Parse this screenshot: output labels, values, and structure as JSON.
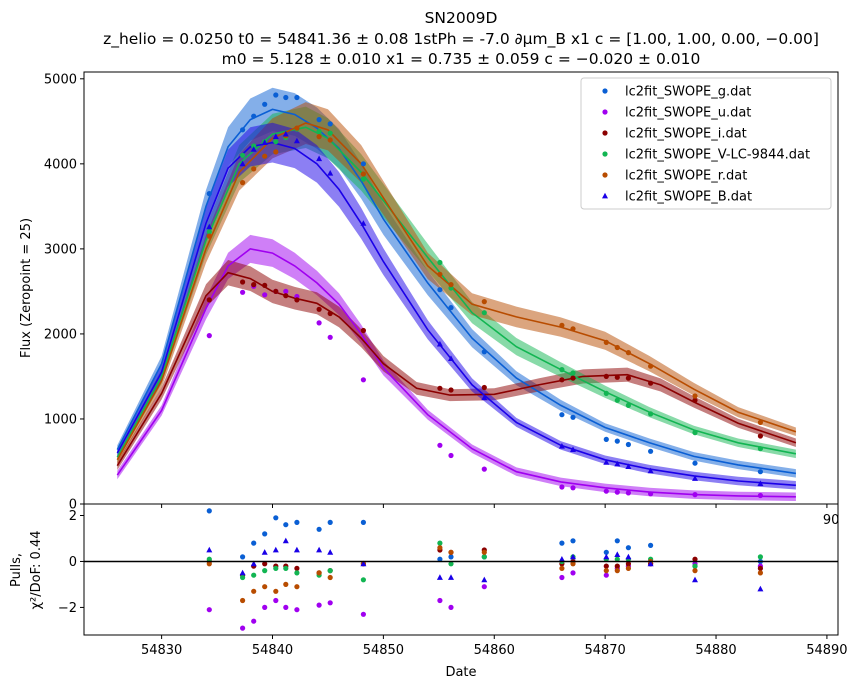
{
  "chart_data": [
    {
      "type": "scatter",
      "title": "SN2009D",
      "subtitle_line1": "z_helio = 0.0250 t0 = 54841.36 ± 0.08 1stPh = -7.0 ∂μm_B x1 c = [1.00, 1.00, 0.00, −0.00]",
      "subtitle_line2": "m0 = 5.128 ± 0.010 x1 = 0.735 ± 0.059 c = −0.020 ± 0.010",
      "ylabel": "Flux (Zeropoint = 25)",
      "xlim": [
        54823,
        54891
      ],
      "ylim": [
        0,
        5080
      ],
      "yticks": [
        0,
        1000,
        2000,
        3000,
        4000,
        5000
      ],
      "xtick_visible": [
        "54890"
      ],
      "legend_placement": "top-right",
      "series": [
        {
          "name": "lc2fit_SWOPE_g.dat",
          "color": "#0a5fd4",
          "marker": "circle",
          "x": [
            54834.3,
            54837.3,
            54838.3,
            54839.3,
            54840.3,
            54841.2,
            54842.2,
            54844.2,
            54845.2,
            54848.2,
            54855.1,
            54856.1,
            54859.1,
            54866.1,
            54867.1,
            54870.1,
            54871.1,
            54872.1,
            54874.1,
            54878.1,
            54884.0
          ],
          "y": [
            3650,
            4400,
            4560,
            4700,
            4810,
            4780,
            4780,
            4520,
            4470,
            4000,
            2520,
            2310,
            1790,
            1050,
            1020,
            760,
            740,
            700,
            620,
            480,
            380
          ],
          "fit": {
            "x": [
              54826,
              54830,
              54834,
              54836,
              54838,
              54840,
              54842,
              54844,
              54846,
              54848,
              54850,
              54854,
              54858,
              54862,
              54866,
              54870,
              54874,
              54878,
              54882,
              54887.2
            ],
            "y": [
              640,
              1650,
              3500,
              4200,
              4520,
              4640,
              4580,
              4420,
              4180,
              3800,
              3350,
              2600,
              1950,
              1480,
              1160,
              900,
              720,
              560,
              460,
              360
            ]
          }
        },
        {
          "name": "lc2fit_SWOPE_u.dat",
          "color": "#a000f0",
          "marker": "circle",
          "x": [
            54834.3,
            54837.3,
            54838.3,
            54839.3,
            54840.3,
            54841.2,
            54842.2,
            54844.2,
            54845.2,
            54848.2,
            54855.1,
            54856.1,
            54859.1,
            54866.1,
            54867.1,
            54870.1,
            54871.1,
            54872.1,
            54874.1,
            54878.1,
            54884.0
          ],
          "y": [
            1980,
            2490,
            2560,
            2460,
            2500,
            2500,
            2440,
            2130,
            1960,
            1460,
            690,
            570,
            410,
            200,
            190,
            150,
            140,
            130,
            120,
            110,
            100
          ],
          "fit": {
            "x": [
              54826,
              54830,
              54834,
              54836,
              54838,
              54840,
              54842,
              54844,
              54846,
              54848,
              54850,
              54854,
              54858,
              54862,
              54866,
              54870,
              54874,
              54878,
              54882,
              54887.2
            ],
            "y": [
              340,
              1100,
              2300,
              2800,
              3000,
              2950,
              2800,
              2600,
              2350,
              2000,
              1600,
              1050,
              650,
              380,
              260,
              190,
              140,
              110,
              95,
              85
            ]
          }
        },
        {
          "name": "lc2fit_SWOPE_i.dat",
          "color": "#8b0000",
          "marker": "circle",
          "x": [
            54834.3,
            54837.3,
            54838.3,
            54839.3,
            54840.3,
            54841.2,
            54842.2,
            54844.2,
            54845.2,
            54848.2,
            54855.1,
            54856.1,
            54859.1,
            54866.1,
            54867.1,
            54870.1,
            54871.1,
            54872.1,
            54874.1,
            54878.1,
            54884.0
          ],
          "y": [
            2400,
            2610,
            2580,
            2570,
            2500,
            2450,
            2400,
            2290,
            2240,
            2040,
            1360,
            1340,
            1370,
            1460,
            1480,
            1500,
            1490,
            1480,
            1420,
            1220,
            800
          ],
          "fit": {
            "x": [
              54826,
              54830,
              54834,
              54836,
              54838,
              54840,
              54842,
              54844,
              54846,
              54848,
              54850,
              54853,
              54856,
              54860,
              54864,
              54868,
              54872,
              54875,
              54878,
              54882,
              54887.2
            ],
            "y": [
              450,
              1300,
              2450,
              2720,
              2650,
              2500,
              2420,
              2360,
              2200,
              1950,
              1650,
              1360,
              1280,
              1290,
              1400,
              1500,
              1520,
              1400,
              1200,
              950,
              720
            ]
          }
        },
        {
          "name": "lc2fit_SWOPE_V-LC-9844.dat",
          "color": "#12b552",
          "marker": "circle",
          "x": [
            54834.3,
            54837.3,
            54838.3,
            54839.3,
            54840.3,
            54841.2,
            54842.2,
            54844.2,
            54845.2,
            54848.2,
            54855.1,
            54856.1,
            54859.1,
            54866.1,
            54867.1,
            54870.1,
            54871.1,
            54872.1,
            54874.1,
            54878.1,
            54884.0
          ],
          "y": [
            3200,
            4100,
            4210,
            4260,
            4260,
            4310,
            4410,
            4380,
            4360,
            3820,
            2840,
            2540,
            2250,
            1580,
            1540,
            1300,
            1220,
            1160,
            1060,
            840,
            650
          ],
          "fit": {
            "x": [
              54826,
              54830,
              54834,
              54837,
              54840,
              54843,
              54845,
              54848,
              54851,
              54854,
              54858,
              54862,
              54866,
              54870,
              54874,
              54878,
              54882,
              54887.2
            ],
            "y": [
              550,
              1500,
              3100,
              4000,
              4350,
              4430,
              4300,
              3900,
              3400,
              2900,
              2250,
              1850,
              1580,
              1320,
              1080,
              870,
              720,
              590
            ]
          }
        },
        {
          "name": "lc2fit_SWOPE_r.dat",
          "color": "#b84c00",
          "marker": "circle",
          "x": [
            54834.3,
            54837.3,
            54838.3,
            54839.3,
            54840.3,
            54841.2,
            54842.2,
            54844.2,
            54845.2,
            54848.2,
            54855.1,
            54856.1,
            54859.1,
            54866.1,
            54867.1,
            54870.1,
            54871.1,
            54872.1,
            54874.1,
            54878.1,
            54884.0
          ],
          "y": [
            3150,
            3780,
            3940,
            4090,
            4140,
            4330,
            4420,
            4320,
            4280,
            3880,
            2700,
            2580,
            2380,
            2100,
            2060,
            1900,
            1840,
            1780,
            1620,
            1270,
            960
          ],
          "fit": {
            "x": [
              54826,
              54830,
              54834,
              54837,
              54840,
              54843,
              54845,
              54848,
              54851,
              54854,
              54858,
              54862,
              54866,
              54870,
              54874,
              54878,
              54882,
              54887.2
            ],
            "y": [
              520,
              1450,
              3000,
              3900,
              4300,
              4480,
              4400,
              4000,
              3400,
              2800,
              2350,
              2200,
              2080,
              1920,
              1650,
              1350,
              1080,
              850
            ]
          }
        },
        {
          "name": "lc2fit_SWOPE_B.dat",
          "color": "#1a00e8",
          "marker": "triangle",
          "x": [
            54834.3,
            54837.3,
            54838.3,
            54839.3,
            54840.3,
            54841.2,
            54842.2,
            54844.2,
            54845.2,
            54848.2,
            54855.1,
            54856.1,
            54859.1,
            54866.1,
            54867.1,
            54870.1,
            54871.1,
            54872.1,
            54874.1,
            54878.1,
            54884.0
          ],
          "y": [
            3260,
            4000,
            4170,
            4250,
            4320,
            4350,
            4270,
            4060,
            3890,
            3300,
            1880,
            1710,
            1250,
            680,
            640,
            490,
            470,
            440,
            390,
            300,
            240
          ],
          "fit": {
            "x": [
              54826,
              54830,
              54834,
              54836,
              54838,
              54840,
              54842,
              54844,
              54846,
              54848,
              54850,
              54854,
              54858,
              54862,
              54866,
              54870,
              54874,
              54878,
              54882,
              54887.2
            ],
            "y": [
              600,
              1550,
              3300,
              3950,
              4200,
              4250,
              4180,
              4000,
              3700,
              3300,
              2850,
              2050,
              1400,
              960,
              690,
              520,
              410,
              330,
              270,
              220
            ]
          }
        }
      ]
    },
    {
      "type": "scatter",
      "xlabel": "Date",
      "ylabel_line1": "Pulls,",
      "ylabel_line2": "χ²/DoF: 0.44",
      "xlim": [
        54823,
        54891
      ],
      "ylim": [
        -3.2,
        2.5
      ],
      "xticks": [
        54830,
        54840,
        54850,
        54860,
        54870,
        54880,
        54890
      ],
      "yticks": [
        -2,
        0,
        2
      ],
      "zero_line": 0,
      "series": [
        {
          "name": "lc2fit_SWOPE_g.dat",
          "color": "#0a5fd4",
          "marker": "circle",
          "x": [
            54834.3,
            54837.3,
            54838.3,
            54839.3,
            54840.3,
            54841.2,
            54842.2,
            54844.2,
            54845.2,
            54848.2,
            54855.1,
            54856.1,
            54859.1,
            54866.1,
            54867.1,
            54870.1,
            54871.1,
            54872.1,
            54874.1,
            54878.1,
            54884.0
          ],
          "y": [
            2.2,
            0.2,
            0.8,
            1.2,
            1.9,
            1.6,
            1.7,
            1.4,
            1.7,
            1.7,
            0.1,
            0.2,
            0.2,
            0.8,
            0.9,
            0.4,
            0.9,
            0.6,
            0.7,
            -0.2,
            0.0
          ]
        },
        {
          "name": "lc2fit_SWOPE_u.dat",
          "color": "#a000f0",
          "marker": "circle",
          "x": [
            54834.3,
            54837.3,
            54838.3,
            54839.3,
            54840.3,
            54841.2,
            54842.2,
            54844.2,
            54845.2,
            54848.2,
            54855.1,
            54856.1,
            54859.1,
            54866.1,
            54867.1,
            54870.1,
            54871.1,
            54872.1,
            54874.1,
            54878.1,
            54884.0
          ],
          "y": [
            -2.1,
            -2.9,
            -2.6,
            -2.0,
            -1.7,
            -2.0,
            -2.1,
            -1.9,
            -1.8,
            -2.3,
            -1.7,
            -2.0,
            -1.1,
            -0.7,
            -0.5,
            -0.6,
            -0.3,
            -0.2,
            -0.1,
            -0.1,
            -0.2
          ]
        },
        {
          "name": "lc2fit_SWOPE_i.dat",
          "color": "#8b0000",
          "marker": "circle",
          "x": [
            54834.3,
            54837.3,
            54838.3,
            54839.3,
            54840.3,
            54841.2,
            54842.2,
            54844.2,
            54845.2,
            54848.2,
            54855.1,
            54856.1,
            54859.1,
            54866.1,
            54867.1,
            54870.1,
            54871.1,
            54872.1,
            54874.1,
            54878.1,
            54884.0
          ],
          "y": [
            0.0,
            -0.6,
            -0.2,
            -0.1,
            -0.2,
            -0.2,
            -0.3,
            -0.5,
            -0.4,
            -0.1,
            0.5,
            0.4,
            0.5,
            -0.1,
            0.0,
            -0.2,
            -0.2,
            -0.1,
            -0.1,
            0.1,
            -0.3
          ]
        },
        {
          "name": "lc2fit_SWOPE_V-LC-9844.dat",
          "color": "#12b552",
          "marker": "circle",
          "x": [
            54834.3,
            54837.3,
            54838.3,
            54839.3,
            54840.3,
            54841.2,
            54842.2,
            54844.2,
            54845.2,
            54848.2,
            54855.1,
            54856.1,
            54859.1,
            54866.1,
            54867.1,
            54870.1,
            54871.1,
            54872.1,
            54874.1,
            54878.1,
            54884.0
          ],
          "y": [
            0.1,
            -0.7,
            -0.6,
            -0.4,
            -0.3,
            -0.3,
            -0.5,
            -0.6,
            -0.4,
            -0.8,
            0.8,
            -0.1,
            0.2,
            0.0,
            0.2,
            0.1,
            0.1,
            0.1,
            0.1,
            -0.2,
            0.2
          ]
        },
        {
          "name": "lc2fit_SWOPE_r.dat",
          "color": "#b84c00",
          "marker": "circle",
          "x": [
            54834.3,
            54837.3,
            54838.3,
            54839.3,
            54840.3,
            54841.2,
            54842.2,
            54844.2,
            54845.2,
            54848.2,
            54855.1,
            54856.1,
            54859.1,
            54866.1,
            54867.1,
            54870.1,
            54871.1,
            54872.1,
            54874.1,
            54878.1,
            54884.0
          ],
          "y": [
            -0.1,
            -1.7,
            -1.3,
            -1.1,
            -1.3,
            -1.0,
            -1.1,
            -0.5,
            -0.7,
            -0.1,
            0.6,
            0.4,
            0.4,
            -0.3,
            -0.1,
            -0.4,
            -0.4,
            -0.3,
            0.0,
            -0.4,
            -0.5
          ]
        },
        {
          "name": "lc2fit_SWOPE_B.dat",
          "color": "#1a00e8",
          "marker": "triangle",
          "x": [
            54834.3,
            54837.3,
            54838.3,
            54839.3,
            54840.3,
            54841.2,
            54842.2,
            54844.2,
            54845.2,
            54848.2,
            54855.1,
            54856.1,
            54859.1,
            54866.1,
            54867.1,
            54870.1,
            54871.1,
            54872.1,
            54874.1,
            54878.1,
            54884.0
          ],
          "y": [
            0.5,
            -0.5,
            -0.1,
            0.4,
            0.5,
            0.9,
            0.5,
            0.5,
            0.4,
            -0.1,
            -0.7,
            -0.7,
            -0.8,
            0.1,
            0.2,
            0.2,
            0.3,
            0.2,
            -0.1,
            -0.8,
            -1.2
          ]
        }
      ]
    }
  ]
}
